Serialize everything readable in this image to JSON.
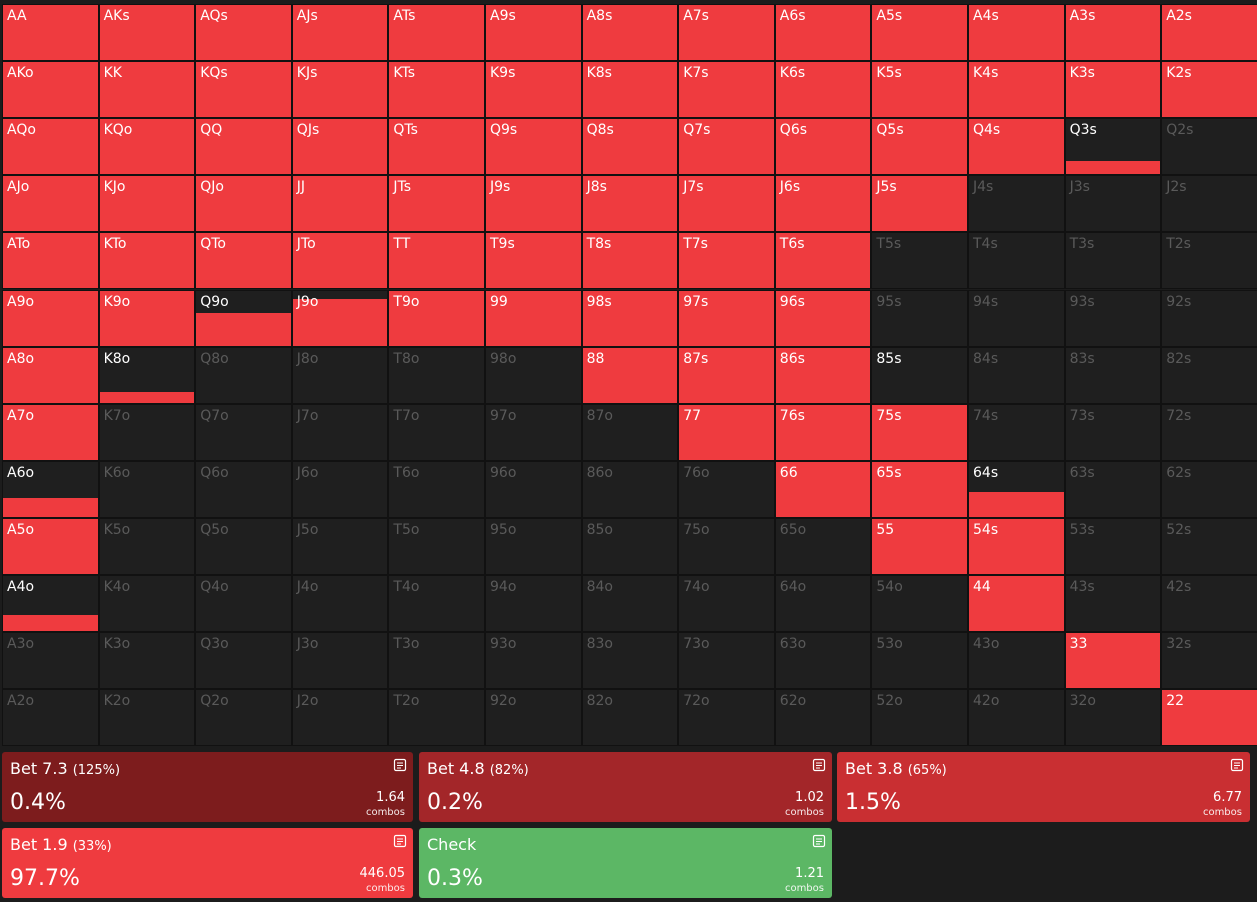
{
  "range_grid": {
    "hands": [
      [
        "AA",
        "AKs",
        "AQs",
        "AJs",
        "ATs",
        "A9s",
        "A8s",
        "A7s",
        "A6s",
        "A5s",
        "A4s",
        "A3s",
        "A2s"
      ],
      [
        "AKo",
        "KK",
        "KQs",
        "KJs",
        "KTs",
        "K9s",
        "K8s",
        "K7s",
        "K6s",
        "K5s",
        "K4s",
        "K3s",
        "K2s"
      ],
      [
        "AQo",
        "KQo",
        "QQ",
        "QJs",
        "QTs",
        "Q9s",
        "Q8s",
        "Q7s",
        "Q6s",
        "Q5s",
        "Q4s",
        "Q3s",
        "Q2s"
      ],
      [
        "AJo",
        "KJo",
        "QJo",
        "JJ",
        "JTs",
        "J9s",
        "J8s",
        "J7s",
        "J6s",
        "J5s",
        "J4s",
        "J3s",
        "J2s"
      ],
      [
        "ATo",
        "KTo",
        "QTo",
        "JTo",
        "TT",
        "T9s",
        "T8s",
        "T7s",
        "T6s",
        "T5s",
        "T4s",
        "T3s",
        "T2s"
      ],
      [
        "A9o",
        "K9o",
        "Q9o",
        "J9o",
        "T9o",
        "99",
        "98s",
        "97s",
        "96s",
        "95s",
        "94s",
        "93s",
        "92s"
      ],
      [
        "A8o",
        "K8o",
        "Q8o",
        "J8o",
        "T8o",
        "98o",
        "88",
        "87s",
        "86s",
        "85s",
        "84s",
        "83s",
        "82s"
      ],
      [
        "A7o",
        "K7o",
        "Q7o",
        "J7o",
        "T7o",
        "97o",
        "87o",
        "77",
        "76s",
        "75s",
        "74s",
        "73s",
        "72s"
      ],
      [
        "A6o",
        "K6o",
        "Q6o",
        "J6o",
        "T6o",
        "96o",
        "86o",
        "76o",
        "66",
        "65s",
        "64s",
        "63s",
        "62s"
      ],
      [
        "A5o",
        "K5o",
        "Q5o",
        "J5o",
        "T5o",
        "95o",
        "85o",
        "75o",
        "65o",
        "55",
        "54s",
        "53s",
        "52s"
      ],
      [
        "A4o",
        "K4o",
        "Q4o",
        "J4o",
        "T4o",
        "94o",
        "84o",
        "74o",
        "64o",
        "54o",
        "44",
        "43s",
        "42s"
      ],
      [
        "A3o",
        "K3o",
        "Q3o",
        "J3o",
        "T3o",
        "93o",
        "83o",
        "73o",
        "63o",
        "53o",
        "43o",
        "33",
        "32s"
      ],
      [
        "A2o",
        "K2o",
        "Q2o",
        "J2o",
        "T2o",
        "92o",
        "82o",
        "72o",
        "62o",
        "52o",
        "42o",
        "32o",
        "22"
      ]
    ],
    "freq": [
      [
        1,
        1,
        1,
        1,
        1,
        1,
        1,
        1,
        1,
        1,
        1,
        1,
        1
      ],
      [
        1,
        1,
        1,
        1,
        1,
        1,
        1,
        1,
        1,
        1,
        1,
        1,
        1
      ],
      [
        1,
        1,
        1,
        1,
        1,
        1,
        1,
        1,
        1,
        1,
        1,
        0.25,
        0
      ],
      [
        1,
        1,
        1,
        1,
        1,
        1,
        1,
        1,
        1,
        1,
        0,
        0,
        0
      ],
      [
        1,
        1,
        1,
        1,
        1,
        1,
        1,
        1,
        1,
        0,
        0,
        0,
        0
      ],
      [
        1,
        1,
        0.6,
        0.85,
        1,
        1,
        1,
        1,
        1,
        0,
        0,
        0,
        0
      ],
      [
        1,
        0.2,
        0,
        0,
        0,
        0,
        1,
        1,
        1,
        0,
        0,
        0,
        0
      ],
      [
        1,
        0,
        0,
        0,
        0,
        0,
        0,
        1,
        1,
        1,
        0,
        0,
        0
      ],
      [
        0.35,
        0,
        0,
        0,
        0,
        0,
        0,
        0,
        1,
        1,
        0.45,
        0,
        0
      ],
      [
        1,
        0,
        0,
        0,
        0,
        0,
        0,
        0,
        0,
        1,
        1,
        0,
        0
      ],
      [
        0.3,
        0,
        0,
        0,
        0,
        0,
        0,
        0,
        0,
        0,
        1,
        0,
        0
      ],
      [
        0,
        0,
        0,
        0,
        0,
        0,
        0,
        0,
        0,
        0,
        0,
        1,
        0
      ],
      [
        0,
        0,
        0,
        0,
        0,
        0,
        0,
        0,
        0,
        0,
        0,
        0,
        1
      ]
    ],
    "in_range": [
      [
        1,
        1,
        1,
        1,
        1,
        1,
        1,
        1,
        1,
        1,
        1,
        1,
        1
      ],
      [
        1,
        1,
        1,
        1,
        1,
        1,
        1,
        1,
        1,
        1,
        1,
        1,
        1
      ],
      [
        1,
        1,
        1,
        1,
        1,
        1,
        1,
        1,
        1,
        1,
        1,
        1,
        0
      ],
      [
        1,
        1,
        1,
        1,
        1,
        1,
        1,
        1,
        1,
        1,
        0,
        0,
        0
      ],
      [
        1,
        1,
        1,
        1,
        1,
        1,
        1,
        1,
        1,
        0,
        0,
        0,
        0
      ],
      [
        1,
        1,
        1,
        1,
        1,
        1,
        1,
        1,
        1,
        0,
        0,
        0,
        0
      ],
      [
        1,
        1,
        0,
        0,
        0,
        0,
        1,
        1,
        1,
        1,
        0,
        0,
        0
      ],
      [
        1,
        0,
        0,
        0,
        0,
        0,
        0,
        1,
        1,
        1,
        0,
        0,
        0
      ],
      [
        1,
        0,
        0,
        0,
        0,
        0,
        0,
        0,
        1,
        1,
        1,
        0,
        0
      ],
      [
        1,
        0,
        0,
        0,
        0,
        0,
        0,
        0,
        0,
        1,
        1,
        0,
        0
      ],
      [
        1,
        0,
        0,
        0,
        0,
        0,
        0,
        0,
        0,
        0,
        1,
        0,
        0
      ],
      [
        0,
        0,
        0,
        0,
        0,
        0,
        0,
        0,
        0,
        0,
        0,
        1,
        0
      ],
      [
        0,
        0,
        0,
        0,
        0,
        0,
        0,
        0,
        0,
        0,
        0,
        0,
        1
      ]
    ],
    "color": "#ef3b3f"
  },
  "actions": [
    {
      "name": "Bet 7.3",
      "sizing": "(125%)",
      "frequency": "0.4%",
      "combos": "1.64",
      "combos_label": "combos",
      "color": "#7d1c1d"
    },
    {
      "name": "Bet 4.8",
      "sizing": "(82%)",
      "frequency": "0.2%",
      "combos": "1.02",
      "combos_label": "combos",
      "color": "#a32629"
    },
    {
      "name": "Bet 3.8",
      "sizing": "(65%)",
      "frequency": "1.5%",
      "combos": "6.77",
      "combos_label": "combos",
      "color": "#c92f32"
    },
    {
      "name": "Bet 1.9",
      "sizing": "(33%)",
      "frequency": "97.7%",
      "combos": "446.05",
      "combos_label": "combos",
      "color": "#ef3b3f"
    },
    {
      "name": "Check",
      "frequency": "0.3%",
      "combos": "1.21",
      "combos_label": "combos",
      "color": "#5cb765"
    }
  ]
}
